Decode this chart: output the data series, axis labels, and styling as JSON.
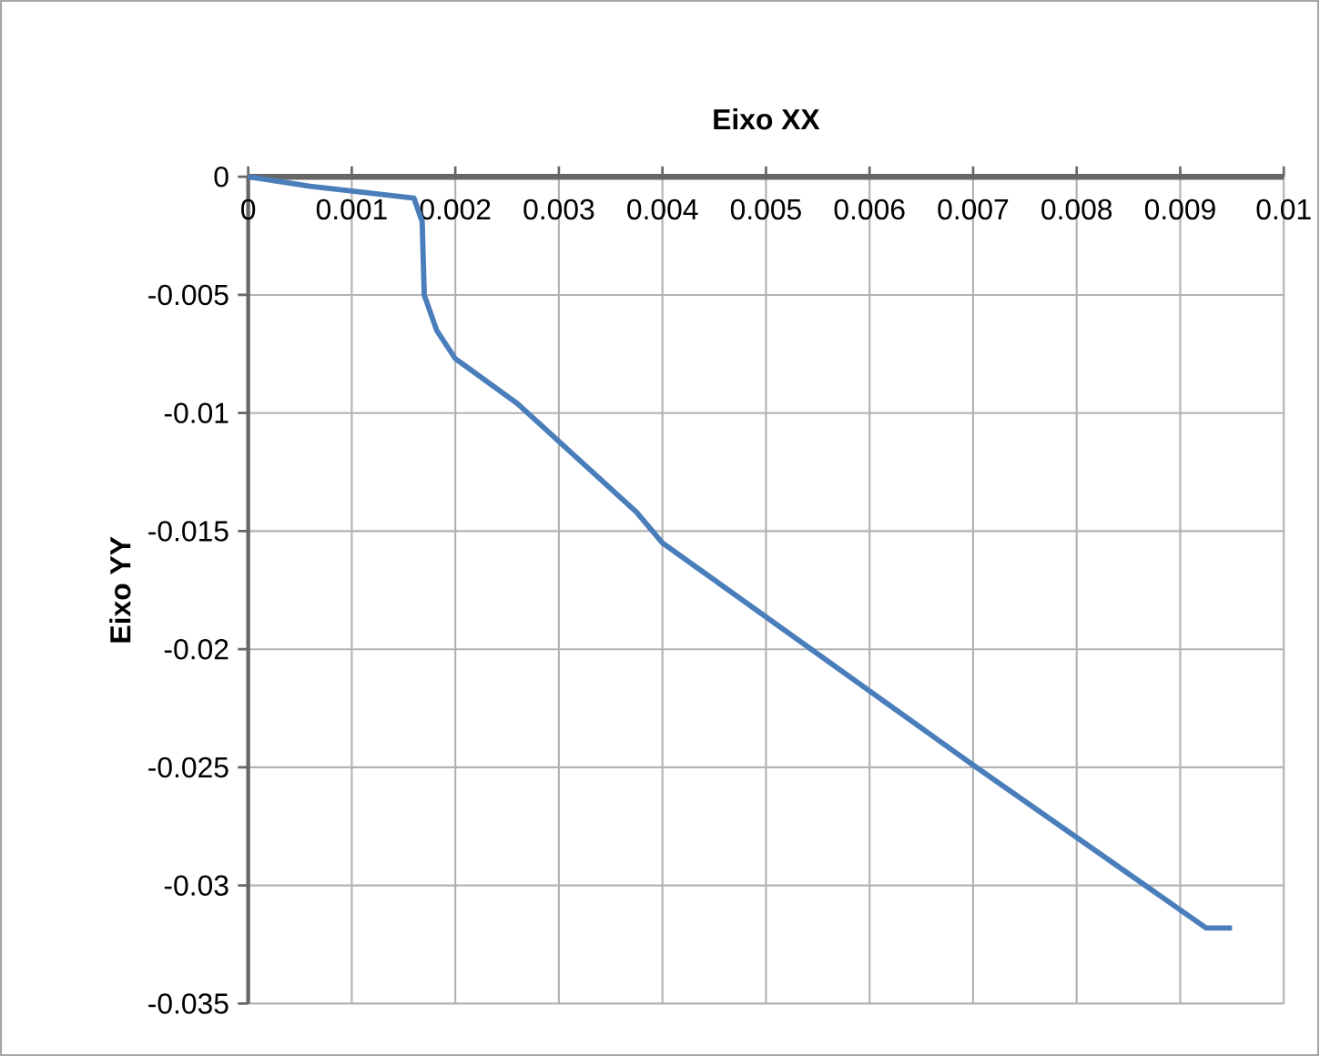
{
  "chart_data": {
    "type": "line",
    "title": "Eixo XX",
    "ylabel": "Eixo YY",
    "x": [
      0,
      0.0006,
      0.0016,
      0.00168,
      0.0017,
      0.00182,
      0.002,
      0.0026,
      0.00375,
      0.004,
      0.007,
      0.00925,
      0.0095
    ],
    "series": [
      {
        "color": "#4a7ebb",
        "values": [
          0,
          -0.0004,
          -0.0009,
          -0.0019,
          -0.005,
          -0.0065,
          -0.0077,
          -0.0096,
          -0.0142,
          -0.0155,
          -0.0249,
          -0.0318,
          -0.0318
        ]
      }
    ],
    "xlim": [
      0,
      0.01
    ],
    "ylim": [
      -0.035,
      0
    ],
    "xticks": [
      0,
      0.001,
      0.002,
      0.003,
      0.004,
      0.005,
      0.006,
      0.007,
      0.008,
      0.009,
      0.01
    ],
    "yticks": [
      -0.035,
      -0.03,
      -0.025,
      -0.02,
      -0.015,
      -0.01,
      -0.005,
      0
    ],
    "grid": true,
    "marker": "none",
    "line_style": "solid"
  }
}
